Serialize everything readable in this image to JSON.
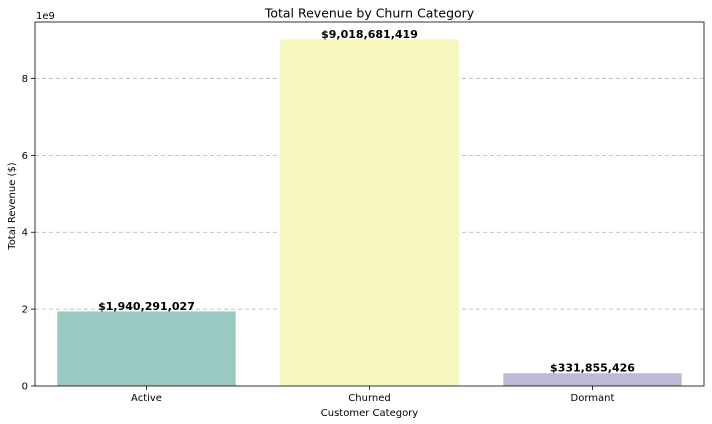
{
  "chart_data": {
    "type": "bar",
    "title": "Total Revenue by Churn Category",
    "xlabel": "Customer Category",
    "ylabel": "Total Revenue ($)",
    "offset_text": "1e9",
    "categories": [
      "Active",
      "Churned",
      "Dormant"
    ],
    "values": [
      1940291027,
      9018681419,
      331855426
    ],
    "value_labels": [
      "$1,940,291,027",
      "$9,018,681,419",
      "$331,855,426"
    ],
    "colors": [
      "#98cac1",
      "#f7f6bd",
      "#bcbad6"
    ],
    "ylim": [
      0,
      9469615490
    ],
    "y_ticks": [
      0,
      2000000000,
      4000000000,
      6000000000,
      8000000000
    ],
    "y_tick_labels": [
      "0",
      "2",
      "4",
      "6",
      "8"
    ],
    "grid": "y-dashed",
    "legend": "none"
  }
}
